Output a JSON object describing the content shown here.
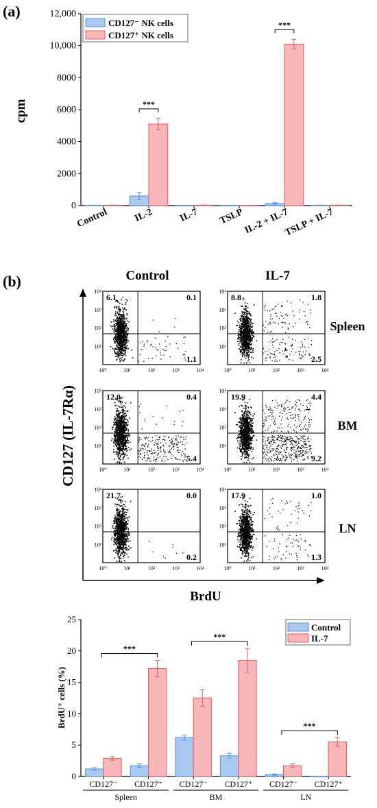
{
  "panel_a": {
    "label": "(a)",
    "chart_data": {
      "type": "bar",
      "title": "",
      "xlabel": "",
      "ylabel": "cpm",
      "ylim": [
        0,
        12000
      ],
      "yticks": [
        "0",
        "2000",
        "4000",
        "6000",
        "8000",
        "10,000",
        "12,000"
      ],
      "categories": [
        "Control",
        "IL-2",
        "IL-7",
        "TSLP",
        "IL-2 + IL-7",
        "TSLP + IL-7"
      ],
      "legend_position": "top-left",
      "series": [
        {
          "name": "CD127⁻ NK cells",
          "color": "#a9c9f0",
          "edge": "#4a90e2",
          "values": [
            20,
            600,
            10,
            10,
            130,
            20
          ],
          "errors": [
            10,
            220,
            5,
            5,
            50,
            10
          ]
        },
        {
          "name": "CD127⁺ NK cells",
          "color": "#f7b6b8",
          "edge": "#e45a5f",
          "values": [
            20,
            5100,
            25,
            10,
            10100,
            25
          ],
          "errors": [
            10,
            350,
            10,
            5,
            300,
            10
          ]
        }
      ],
      "significance": [
        {
          "category_index": 1,
          "label": "***"
        },
        {
          "category_index": 4,
          "label": "***"
        }
      ]
    }
  },
  "panel_b": {
    "label": "(b)",
    "columns": [
      "Control",
      "IL-7"
    ],
    "rows": [
      "Spleen",
      "BM",
      "LN"
    ],
    "y_axis_label": "CD127 (IL-7Rα)",
    "x_axis_label": "BrdU",
    "axis_ticks": [
      "10⁰",
      "10¹",
      "10²",
      "10³",
      "10⁴"
    ],
    "flow_plots": [
      {
        "row": "Spleen",
        "condition": "Control",
        "ul": "6.1",
        "ur": "0.1",
        "lr": "1.1"
      },
      {
        "row": "Spleen",
        "condition": "IL-7",
        "ul": "8.8",
        "ur": "1.8",
        "lr": "2.5"
      },
      {
        "row": "BM",
        "condition": "Control",
        "ul": "12.0",
        "ur": "0.4",
        "lr": "5.4"
      },
      {
        "row": "BM",
        "condition": "IL-7",
        "ul": "19.9",
        "ur": "4.4",
        "lr": "9.2"
      },
      {
        "row": "LN",
        "condition": "Control",
        "ul": "21.7",
        "ur": "0.0",
        "lr": "0.2"
      },
      {
        "row": "LN",
        "condition": "IL-7",
        "ul": "17.9",
        "ur": "1.0",
        "lr": "1.3"
      }
    ],
    "chart_data": {
      "type": "bar",
      "title": "",
      "ylabel": "BrdU⁺ cells (%)",
      "ylim": [
        0,
        25
      ],
      "yticks": [
        "0",
        "5",
        "10",
        "15",
        "20",
        "25"
      ],
      "categories": [
        "CD127⁻",
        "CD127⁺",
        "CD127⁻",
        "CD127⁺",
        "CD127⁻",
        "CD127⁺"
      ],
      "groups": [
        {
          "name": "Spleen",
          "category_indices": [
            0,
            1
          ]
        },
        {
          "name": "BM",
          "category_indices": [
            2,
            3
          ]
        },
        {
          "name": "LN",
          "category_indices": [
            4,
            5
          ]
        }
      ],
      "legend_position": "top-right",
      "series": [
        {
          "name": "Control",
          "color": "#a9c9f0",
          "edge": "#4a90e2",
          "values": [
            1.2,
            1.7,
            6.2,
            3.3,
            0.3,
            0.0
          ],
          "errors": [
            0.2,
            0.3,
            0.4,
            0.4,
            0.1,
            0.0
          ]
        },
        {
          "name": "IL-7",
          "color": "#f7b6b8",
          "edge": "#e45a5f",
          "values": [
            2.9,
            17.2,
            12.5,
            18.5,
            1.7,
            5.5
          ],
          "errors": [
            0.3,
            1.3,
            1.3,
            1.9,
            0.3,
            0.7
          ]
        }
      ],
      "significance": [
        {
          "category_index": 1,
          "start_category": 0,
          "label": "***"
        },
        {
          "category_index": 3,
          "start_category": 2,
          "label": "***"
        },
        {
          "category_index": 5,
          "start_category": 4,
          "label": "***"
        }
      ]
    }
  }
}
